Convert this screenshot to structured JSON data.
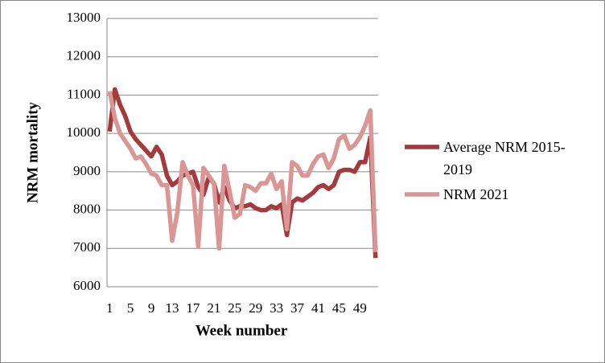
{
  "chart_data": {
    "type": "line",
    "x_label": "Week number",
    "y_label": "NRM mortality",
    "categories": [
      1,
      null,
      null,
      null,
      5,
      null,
      null,
      null,
      9,
      null,
      null,
      null,
      13,
      null,
      null,
      null,
      17,
      null,
      null,
      null,
      21,
      null,
      null,
      null,
      25,
      null,
      null,
      null,
      29,
      null,
      null,
      null,
      33,
      null,
      null,
      null,
      37,
      null,
      null,
      null,
      41,
      null,
      null,
      null,
      45,
      null,
      null,
      null,
      49,
      null,
      null,
      null
    ],
    "series": [
      {
        "name": "Average NRM 2015-2019",
        "color": "#a33b3d",
        "values": [
          10050,
          11150,
          10750,
          10450,
          10050,
          9850,
          9700,
          9550,
          9400,
          9650,
          9450,
          8900,
          8650,
          8750,
          8900,
          8950,
          9000,
          8600,
          8400,
          8850,
          8700,
          8200,
          8600,
          8250,
          8050,
          8100,
          8100,
          8150,
          8050,
          8000,
          8000,
          8100,
          8050,
          8150,
          7350,
          8200,
          8300,
          8250,
          8350,
          8450,
          8600,
          8650,
          8550,
          8650,
          9000,
          9050,
          9050,
          9000,
          9250,
          9250,
          9900,
          6750
        ]
      },
      {
        "name": "NRM 2021",
        "color": "#d99694",
        "values": [
          11100,
          10400,
          10000,
          9800,
          9600,
          9350,
          9400,
          9200,
          8950,
          8900,
          8650,
          8650,
          7200,
          7950,
          9250,
          8900,
          8650,
          7050,
          9100,
          8900,
          8700,
          7000,
          9150,
          8500,
          7800,
          7900,
          8650,
          8600,
          8500,
          8700,
          8700,
          8950,
          8550,
          8750,
          7500,
          9250,
          9150,
          8900,
          8900,
          9200,
          9400,
          9450,
          9100,
          9350,
          9850,
          9950,
          9600,
          9700,
          9900,
          10200,
          10600,
          6900
        ]
      }
    ],
    "ylim": [
      6000,
      13000
    ],
    "yticks": [
      6000,
      7000,
      8000,
      9000,
      10000,
      11000,
      12000,
      13000
    ],
    "grid": true,
    "legend": "right"
  }
}
